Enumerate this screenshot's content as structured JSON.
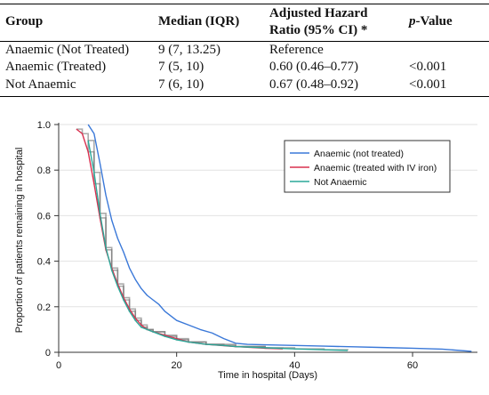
{
  "table": {
    "headers": {
      "group": "Group",
      "median": "Median (IQR)",
      "hr_line1": "Adjusted Hazard",
      "hr_line2": "Ratio (95% CI) *",
      "p_ital": "p",
      "p_rest": "-Value"
    },
    "rows": [
      {
        "group": "Anaemic (Not Treated)",
        "median": "9 (7, 13.25)",
        "hr": "Reference",
        "p": ""
      },
      {
        "group": "Anaemic (Treated)",
        "median": "7 (5, 10)",
        "hr": "0.60 (0.46–0.77)",
        "p": "<0.001"
      },
      {
        "group": "Not Anaemic",
        "median": "7 (6, 10)",
        "hr": "0.67 (0.48–0.92)",
        "p": "<0.001"
      }
    ]
  },
  "chart_data": {
    "type": "line",
    "step": true,
    "xlabel": "Time in hospital (Days)",
    "ylabel": "Proportion of patients remaining in hospital",
    "xlim": [
      0,
      71
    ],
    "ylim": [
      0,
      1.0
    ],
    "xticks": [
      0,
      20,
      40,
      60
    ],
    "xtick_labels": [
      "0",
      "20",
      "40",
      "60"
    ],
    "yticks": [
      0,
      0.2,
      0.4,
      0.6,
      0.8,
      1.0
    ],
    "ytick_labels": [
      "0",
      "0.2",
      "0.4",
      "0.6",
      "0.8",
      "1.0"
    ],
    "legend_position": "top-right",
    "series": [
      {
        "name": "Anaemic (not treated)",
        "color": "#3a78d8",
        "x": [
          5,
          6,
          7,
          8,
          9,
          10,
          11,
          12,
          13,
          14,
          15,
          16,
          17,
          18,
          19,
          20,
          22,
          24,
          26,
          28,
          30,
          32,
          35,
          40,
          45,
          50,
          55,
          60,
          65,
          70
        ],
        "y": [
          1.0,
          0.96,
          0.83,
          0.69,
          0.58,
          0.5,
          0.44,
          0.37,
          0.32,
          0.28,
          0.25,
          0.23,
          0.21,
          0.18,
          0.16,
          0.14,
          0.12,
          0.1,
          0.085,
          0.06,
          0.04,
          0.035,
          0.033,
          0.03,
          0.027,
          0.024,
          0.021,
          0.018,
          0.014,
          0.004
        ]
      },
      {
        "name": "Anaemic (treated with IV iron)",
        "color": "#d9304f",
        "x": [
          3,
          4,
          5,
          6,
          7,
          8,
          9,
          10,
          11,
          12,
          13,
          14,
          15,
          16,
          18,
          20,
          22,
          25,
          30,
          35,
          38
        ],
        "y": [
          0.98,
          0.96,
          0.88,
          0.74,
          0.59,
          0.45,
          0.37,
          0.3,
          0.24,
          0.19,
          0.15,
          0.12,
          0.1,
          0.09,
          0.075,
          0.06,
          0.045,
          0.035,
          0.025,
          0.018,
          0.015
        ]
      },
      {
        "name": "Not Anaemic",
        "color": "#2aa899",
        "x": [
          5,
          6,
          7,
          8,
          9,
          10,
          11,
          12,
          13,
          14,
          15,
          16,
          18,
          20,
          22,
          25,
          28,
          30,
          35,
          40,
          45,
          49
        ],
        "y": [
          0.93,
          0.79,
          0.61,
          0.46,
          0.36,
          0.29,
          0.23,
          0.18,
          0.14,
          0.11,
          0.1,
          0.09,
          0.07,
          0.055,
          0.045,
          0.035,
          0.03,
          0.025,
          0.02,
          0.015,
          0.011,
          0.008
        ]
      }
    ]
  }
}
